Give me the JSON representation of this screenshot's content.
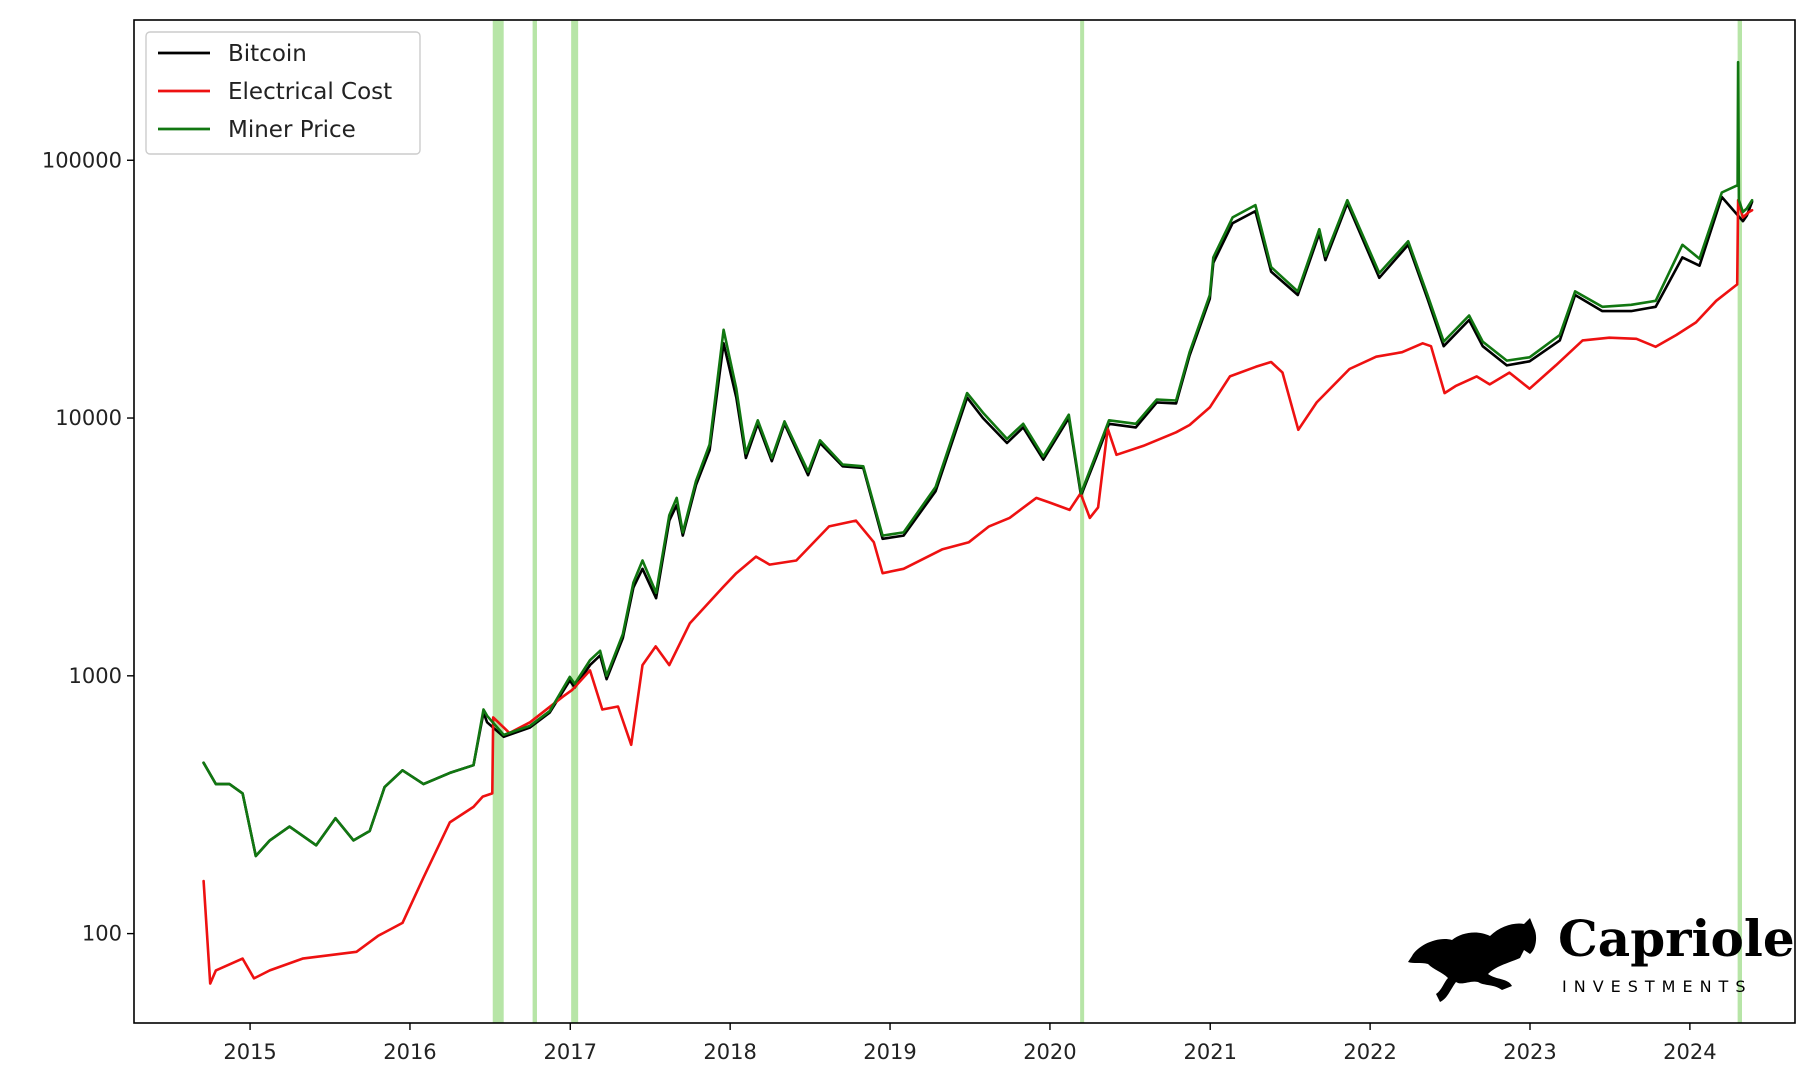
{
  "chart_data": {
    "type": "line",
    "title": "",
    "xlabel": "",
    "ylabel": "",
    "y_scale": "log",
    "ylim": [
      45,
      350000
    ],
    "xlim": [
      "2014-04-11",
      "2024-08-28"
    ],
    "x_ticks": [
      "2015",
      "2016",
      "2017",
      "2018",
      "2019",
      "2020",
      "2021",
      "2022",
      "2023",
      "2024"
    ],
    "y_ticks": [
      "100",
      "1000",
      "10000",
      "100000"
    ],
    "legend": {
      "position": "top-left",
      "entries": [
        "Bitcoin",
        "Electrical Cost",
        "Miner Price"
      ]
    },
    "grid": false,
    "highlight_bands": {
      "color": "#9fdc8a",
      "ranges": [
        [
          "2016-07-08",
          "2016-08-02"
        ],
        [
          "2016-10-07",
          "2016-10-17"
        ],
        [
          "2017-01-03",
          "2017-01-19"
        ],
        [
          "2020-03-10",
          "2020-03-19"
        ],
        [
          "2024-04-19",
          "2024-04-29"
        ]
      ]
    },
    "series": [
      {
        "name": "Bitcoin",
        "color": "#000000",
        "x": [
          "2014-09-17",
          "2014-10-15",
          "2014-11-15",
          "2014-12-15",
          "2015-01-14",
          "2015-02-15",
          "2015-04-01",
          "2015-06-01",
          "2015-07-15",
          "2015-08-25",
          "2015-10-01",
          "2015-11-04",
          "2015-12-15",
          "2016-02-01",
          "2016-04-01",
          "2016-05-25",
          "2016-06-17",
          "2016-06-25",
          "2016-08-02",
          "2016-10-01",
          "2016-11-15",
          "2016-12-31",
          "2017-01-11",
          "2017-02-15",
          "2017-03-10",
          "2017-03-25",
          "2017-05-01",
          "2017-05-25",
          "2017-06-15",
          "2017-07-16",
          "2017-08-15",
          "2017-09-01",
          "2017-09-15",
          "2017-10-15",
          "2017-11-15",
          "2017-12-17",
          "2018-01-15",
          "2018-02-06",
          "2018-03-05",
          "2018-04-06",
          "2018-05-05",
          "2018-06-28",
          "2018-07-25",
          "2018-09-15",
          "2018-11-01",
          "2018-12-15",
          "2019-02-01",
          "2019-04-15",
          "2019-06-26",
          "2019-08-01",
          "2019-09-25",
          "2019-11-01",
          "2019-12-17",
          "2020-02-13",
          "2020-03-12",
          "2020-04-15",
          "2020-05-15",
          "2020-07-15",
          "2020-09-01",
          "2020-10-15",
          "2020-11-15",
          "2020-12-31",
          "2021-01-08",
          "2021-02-21",
          "2021-04-14",
          "2021-05-20",
          "2021-07-20",
          "2021-09-07",
          "2021-09-21",
          "2021-11-10",
          "2022-01-22",
          "2022-03-29",
          "2022-05-12",
          "2022-06-18",
          "2022-08-15",
          "2022-09-15",
          "2022-11-09",
          "2022-12-31",
          "2023-03-10",
          "2023-04-14",
          "2023-06-15",
          "2023-08-20",
          "2023-10-15",
          "2023-12-15",
          "2024-01-23",
          "2024-03-14",
          "2024-05-01",
          "2024-05-10",
          "2024-05-22"
        ],
        "y": [
          460,
          380,
          380,
          350,
          200,
          230,
          260,
          220,
          280,
          230,
          250,
          370,
          430,
          380,
          420,
          450,
          720,
          660,
          580,
          630,
          720,
          960,
          900,
          1100,
          1200,
          970,
          1400,
          2200,
          2600,
          2000,
          4000,
          4600,
          3500,
          5500,
          7500,
          19500,
          12000,
          7000,
          9500,
          6800,
          9500,
          6000,
          8000,
          6500,
          6400,
          3400,
          3500,
          5200,
          12000,
          10000,
          8000,
          9200,
          6900,
          10000,
          5000,
          7000,
          9500,
          9200,
          11500,
          11400,
          17500,
          29000,
          40000,
          57000,
          63500,
          37000,
          30000,
          52000,
          41000,
          68000,
          35000,
          47000,
          29000,
          19000,
          24000,
          19000,
          16000,
          16600,
          20000,
          30000,
          26000,
          26000,
          27000,
          42000,
          39000,
          72000,
          58000,
          61000,
          69000
        ]
      },
      {
        "name": "Electrical Cost",
        "color": "#ee1111",
        "x": [
          "2014-09-17",
          "2014-10-02",
          "2014-10-15",
          "2014-12-15",
          "2015-01-10",
          "2015-02-15",
          "2015-05-01",
          "2015-09-01",
          "2015-10-20",
          "2015-12-15",
          "2016-02-01",
          "2016-04-01",
          "2016-05-25",
          "2016-06-15",
          "2016-07-07",
          "2016-07-09",
          "2016-08-15",
          "2016-10-01",
          "2016-12-15",
          "2017-01-05",
          "2017-02-15",
          "2017-03-15",
          "2017-04-20",
          "2017-05-20",
          "2017-06-15",
          "2017-07-15",
          "2017-08-15",
          "2017-10-01",
          "2017-12-15",
          "2018-01-15",
          "2018-03-01",
          "2018-04-01",
          "2018-06-01",
          "2018-08-15",
          "2018-10-15",
          "2018-11-25",
          "2018-12-15",
          "2019-02-01",
          "2019-05-01",
          "2019-06-30",
          "2019-08-15",
          "2019-10-01",
          "2019-12-01",
          "2020-01-01",
          "2020-02-15",
          "2020-03-11",
          "2020-04-01",
          "2020-04-20",
          "2020-05-12",
          "2020-06-01",
          "2020-08-01",
          "2020-10-15",
          "2020-11-15",
          "2020-12-31",
          "2021-02-15",
          "2021-04-15",
          "2021-05-20",
          "2021-06-15",
          "2021-07-21",
          "2021-09-01",
          "2021-11-15",
          "2022-01-15",
          "2022-03-15",
          "2022-05-01",
          "2022-05-20",
          "2022-06-20",
          "2022-07-15",
          "2022-09-01",
          "2022-10-01",
          "2022-11-15",
          "2022-12-31",
          "2023-03-01",
          "2023-05-01",
          "2023-07-01",
          "2023-09-01",
          "2023-10-15",
          "2023-12-01",
          "2024-01-15",
          "2024-03-01",
          "2024-04-18",
          "2024-04-20",
          "2024-05-01",
          "2024-05-15",
          "2024-05-22"
        ],
        "y": [
          160,
          64,
          72,
          80,
          67,
          72,
          80,
          85,
          98,
          110,
          165,
          270,
          310,
          340,
          350,
          690,
          600,
          660,
          830,
          880,
          1050,
          740,
          760,
          540,
          1100,
          1300,
          1100,
          1600,
          2200,
          2500,
          2900,
          2700,
          2800,
          3800,
          4000,
          3300,
          2500,
          2600,
          3100,
          3300,
          3800,
          4100,
          4900,
          4700,
          4400,
          5100,
          4100,
          4500,
          9100,
          7200,
          7800,
          8800,
          9400,
          11000,
          14500,
          15800,
          16500,
          15000,
          9000,
          11500,
          15500,
          17300,
          18000,
          19500,
          19000,
          12500,
          13300,
          14500,
          13500,
          15000,
          13000,
          16000,
          20000,
          20500,
          20300,
          18900,
          21000,
          23500,
          28500,
          33000,
          70000,
          60000,
          63000,
          64000
        ]
      },
      {
        "name": "Miner Price",
        "color": "#117711",
        "x": [
          "2014-09-17",
          "2014-10-15",
          "2014-11-15",
          "2014-12-15",
          "2015-01-14",
          "2015-02-15",
          "2015-04-01",
          "2015-06-01",
          "2015-07-15",
          "2015-08-25",
          "2015-10-01",
          "2015-11-04",
          "2015-12-15",
          "2016-02-01",
          "2016-04-01",
          "2016-05-25",
          "2016-06-17",
          "2016-06-25",
          "2016-08-02",
          "2016-10-01",
          "2016-11-15",
          "2016-12-31",
          "2017-01-11",
          "2017-02-15",
          "2017-03-10",
          "2017-03-25",
          "2017-05-01",
          "2017-05-25",
          "2017-06-15",
          "2017-07-16",
          "2017-08-15",
          "2017-09-01",
          "2017-09-15",
          "2017-10-15",
          "2017-11-15",
          "2017-12-17",
          "2018-01-15",
          "2018-02-06",
          "2018-03-05",
          "2018-04-06",
          "2018-05-05",
          "2018-06-28",
          "2018-07-25",
          "2018-09-15",
          "2018-11-01",
          "2018-12-15",
          "2019-02-01",
          "2019-04-15",
          "2019-06-26",
          "2019-08-01",
          "2019-09-25",
          "2019-11-01",
          "2019-12-17",
          "2020-02-13",
          "2020-03-12",
          "2020-04-15",
          "2020-05-15",
          "2020-07-15",
          "2020-09-01",
          "2020-10-15",
          "2020-11-15",
          "2020-12-31",
          "2021-01-08",
          "2021-02-21",
          "2021-04-14",
          "2021-05-20",
          "2021-07-20",
          "2021-09-07",
          "2021-09-21",
          "2021-11-10",
          "2022-01-22",
          "2022-03-29",
          "2022-05-12",
          "2022-06-18",
          "2022-08-15",
          "2022-09-15",
          "2022-11-09",
          "2022-12-31",
          "2023-03-10",
          "2023-04-14",
          "2023-06-15",
          "2023-08-20",
          "2023-10-15",
          "2023-12-15",
          "2024-01-23",
          "2024-03-14",
          "2024-04-19",
          "2024-04-20",
          "2024-04-22",
          "2024-05-01",
          "2024-05-10",
          "2024-05-22"
        ],
        "y": [
          460,
          380,
          380,
          350,
          200,
          230,
          260,
          220,
          280,
          230,
          250,
          370,
          430,
          380,
          420,
          450,
          740,
          700,
          590,
          640,
          730,
          990,
          930,
          1150,
          1250,
          1000,
          1450,
          2300,
          2800,
          2100,
          4200,
          4900,
          3600,
          5700,
          7900,
          22000,
          13000,
          7300,
          9800,
          7000,
          9700,
          6200,
          8200,
          6600,
          6500,
          3500,
          3600,
          5400,
          12500,
          10500,
          8300,
          9500,
          7100,
          10300,
          5100,
          7200,
          9800,
          9500,
          11800,
          11700,
          18000,
          30000,
          42000,
          60000,
          67000,
          38500,
          31000,
          54000,
          42500,
          70000,
          36500,
          48500,
          30000,
          19800,
          25000,
          19800,
          16700,
          17200,
          21000,
          31000,
          27000,
          27500,
          28500,
          47000,
          41500,
          75000,
          80000,
          240000,
          70000,
          63000,
          65000,
          70000
        ]
      }
    ]
  },
  "brand": {
    "name": "Capriole",
    "sub": "INVESTMENTS",
    "logo": "horse-logo-icon"
  }
}
